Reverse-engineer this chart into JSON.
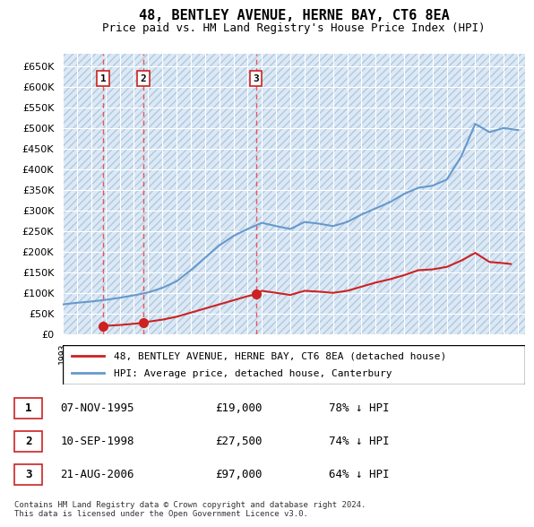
{
  "title": "48, BENTLEY AVENUE, HERNE BAY, CT6 8EA",
  "subtitle": "Price paid vs. HM Land Registry's House Price Index (HPI)",
  "bg_color": "#dce9f5",
  "plot_bg_color": "#dce9f5",
  "hatch_color": "#c8d8ea",
  "ylabel": "",
  "ylim": [
    0,
    680000
  ],
  "yticks": [
    0,
    50000,
    100000,
    150000,
    200000,
    250000,
    300000,
    350000,
    400000,
    450000,
    500000,
    550000,
    600000,
    650000
  ],
  "ytick_labels": [
    "£0",
    "£50K",
    "£100K",
    "£150K",
    "£200K",
    "£250K",
    "£300K",
    "£350K",
    "£400K",
    "£450K",
    "£500K",
    "£550K",
    "£600K",
    "£650K"
  ],
  "hpi_color": "#6699cc",
  "price_color": "#cc2222",
  "sale_marker_color": "#cc2222",
  "sale_dates": [
    "1995-11-07",
    "1998-09-10",
    "2006-08-21"
  ],
  "sale_prices": [
    19000,
    27500,
    97000
  ],
  "sale_labels": [
    "1",
    "2",
    "3"
  ],
  "sale_info": [
    {
      "label": "1",
      "date": "07-NOV-1995",
      "price": "£19,000",
      "hpi": "78% ↓ HPI"
    },
    {
      "label": "2",
      "date": "10-SEP-1998",
      "price": "£27,500",
      "hpi": "74% ↓ HPI"
    },
    {
      "label": "3",
      "date": "21-AUG-2006",
      "price": "£97,000",
      "hpi": "64% ↓ HPI"
    }
  ],
  "legend_line1": "48, BENTLEY AVENUE, HERNE BAY, CT6 8EA (detached house)",
  "legend_line2": "HPI: Average price, detached house, Canterbury",
  "footnote": "Contains HM Land Registry data © Crown copyright and database right 2024.\nThis data is licensed under the Open Government Licence v3.0.",
  "hpi_years": [
    1993,
    1994,
    1995,
    1996,
    1997,
    1998,
    1999,
    2000,
    2001,
    2002,
    2003,
    2004,
    2005,
    2006,
    2007,
    2008,
    2009,
    2010,
    2011,
    2012,
    2013,
    2014,
    2015,
    2016,
    2017,
    2018,
    2019,
    2020,
    2021,
    2022,
    2023,
    2024,
    2025
  ],
  "hpi_values": [
    72000,
    76000,
    79000,
    83000,
    88000,
    94000,
    101000,
    112000,
    128000,
    155000,
    185000,
    215000,
    238000,
    255000,
    270000,
    262000,
    255000,
    272000,
    268000,
    262000,
    272000,
    290000,
    305000,
    320000,
    340000,
    355000,
    360000,
    375000,
    430000,
    510000,
    490000,
    500000,
    495000
  ],
  "price_interp_years": [
    1995.85,
    1996,
    1997,
    1998,
    1998.7,
    1999,
    2000,
    2001,
    2002,
    2003,
    2004,
    2005,
    2006,
    2006.65,
    2007,
    2008,
    2009,
    2010,
    2011,
    2012,
    2013,
    2014,
    2015,
    2016,
    2017,
    2018,
    2019,
    2020,
    2021,
    2022,
    2023,
    2024,
    2024.5
  ],
  "price_interp_values": [
    19000,
    20000,
    22000,
    25000,
    27500,
    30000,
    35000,
    42000,
    52000,
    62000,
    72000,
    82000,
    92000,
    97000,
    105000,
    100000,
    95000,
    105000,
    103000,
    100000,
    105000,
    115000,
    125000,
    133000,
    143000,
    155000,
    157000,
    163000,
    178000,
    197000,
    175000,
    172000,
    170000
  ]
}
